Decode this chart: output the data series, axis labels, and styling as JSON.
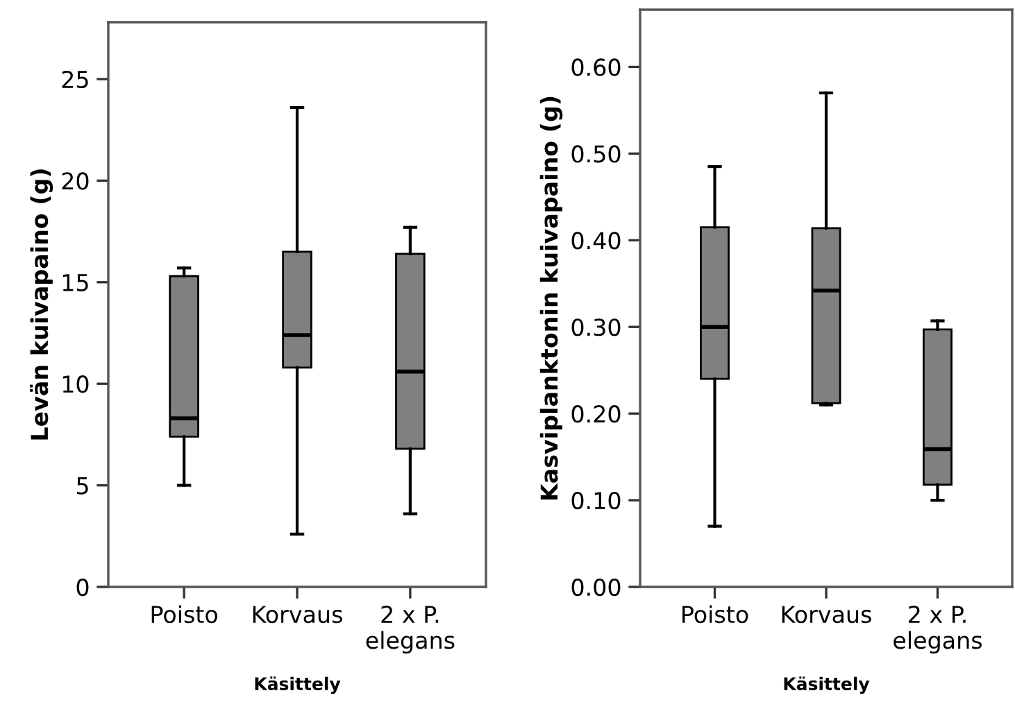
{
  "chart_data": [
    {
      "type": "box",
      "categories": [
        "Poisto",
        "Korvaus",
        "2 x P.\nelegans"
      ],
      "xlabel": "Käsittely",
      "ylabel": "Levän kuivapaino (g)",
      "color": "#808080",
      "ylim": [
        0,
        27.8
      ],
      "yticks": [
        0,
        5,
        10,
        15,
        20,
        25
      ],
      "grid": false,
      "boxes": [
        {
          "low": 5.0,
          "q1": 7.4,
          "median": 8.3,
          "q3": 15.3,
          "high": 15.7
        },
        {
          "low": 2.6,
          "q1": 10.8,
          "median": 12.4,
          "q3": 16.5,
          "high": 23.6
        },
        {
          "low": 3.6,
          "q1": 6.8,
          "median": 10.6,
          "q3": 16.4,
          "high": 17.7
        }
      ]
    },
    {
      "type": "box",
      "categories": [
        "Poisto",
        "Korvaus",
        "2 x P.\nelegans"
      ],
      "xlabel": "Käsittely",
      "ylabel": "Kasviplanktonin kuivapaino (g)",
      "color": "#808080",
      "ylim": [
        0,
        0.666
      ],
      "yticks": [
        {
          "value": 0,
          "label": "0.00"
        },
        {
          "value": 0.1,
          "label": "0.10"
        },
        {
          "value": 0.2,
          "label": "0.20"
        },
        {
          "value": 0.3,
          "label": "0.30"
        },
        {
          "value": 0.4,
          "label": "0.40"
        },
        {
          "value": 0.5,
          "label": "0.50"
        },
        {
          "value": 0.6,
          "label": "0.60"
        }
      ],
      "grid": false,
      "boxes": [
        {
          "low": 0.07,
          "q1": 0.24,
          "median": 0.3,
          "q3": 0.415,
          "high": 0.485
        },
        {
          "low": 0.21,
          "q1": 0.212,
          "median": 0.342,
          "q3": 0.414,
          "high": 0.57
        },
        {
          "low": 0.1,
          "q1": 0.118,
          "median": 0.159,
          "q3": 0.297,
          "high": 0.307
        }
      ]
    }
  ]
}
